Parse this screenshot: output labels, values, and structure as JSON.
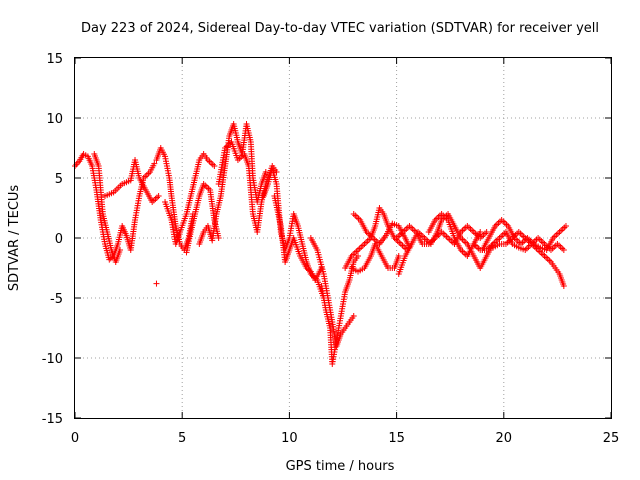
{
  "chart_data": {
    "type": "scatter",
    "title": "Day 223 of 2024, Sidereal Day-to-day VTEC variation (SDTVAR) for receiver yell",
    "xlabel": "GPS time / hours",
    "ylabel": "SDTVAR / TECUs",
    "xlim": [
      0,
      25
    ],
    "ylim": [
      -15,
      15
    ],
    "xticks": [
      "0",
      "5",
      "10",
      "15",
      "20",
      "25"
    ],
    "yticks": [
      "-15",
      "-10",
      "-5",
      "0",
      "5",
      "10",
      "15"
    ],
    "grid": true,
    "marker": "+",
    "series_color": "#ff0000",
    "series": [
      {
        "name": "SDTVAR",
        "segments": [
          [
            [
              0.0,
              6.0
            ],
            [
              0.2,
              6.4
            ],
            [
              0.4,
              7.0
            ],
            [
              0.6,
              6.8
            ],
            [
              0.8,
              6.0
            ],
            [
              1.0,
              4.0
            ],
            [
              1.2,
              1.5
            ],
            [
              1.4,
              -0.5
            ],
            [
              1.6,
              -1.8
            ],
            [
              1.8,
              -1.5
            ],
            [
              2.0,
              -0.5
            ],
            [
              2.2,
              1.0
            ],
            [
              2.4,
              0.2
            ],
            [
              2.6,
              -1.0
            ],
            [
              2.8,
              1.5
            ],
            [
              3.0,
              3.5
            ],
            [
              3.2,
              5.0
            ],
            [
              3.5,
              5.5
            ],
            [
              3.7,
              6.2
            ]
          ],
          [
            [
              0.9,
              7.0
            ],
            [
              1.1,
              6.0
            ],
            [
              1.2,
              4.0
            ],
            [
              1.3,
              2.0
            ],
            [
              1.5,
              0.5
            ],
            [
              1.7,
              -1.0
            ],
            [
              1.9,
              -2.0
            ],
            [
              2.1,
              -1.0
            ]
          ],
          [
            [
              1.4,
              3.5
            ],
            [
              1.8,
              3.8
            ],
            [
              2.2,
              4.5
            ],
            [
              2.6,
              4.8
            ],
            [
              2.8,
              6.5
            ],
            [
              3.0,
              5.0
            ],
            [
              3.3,
              4.0
            ],
            [
              3.6,
              3.0
            ],
            [
              3.9,
              3.5
            ]
          ],
          [
            [
              3.8,
              -3.8
            ]
          ],
          [
            [
              3.8,
              6.5
            ],
            [
              4.0,
              7.5
            ],
            [
              4.2,
              6.8
            ],
            [
              4.4,
              5.0
            ],
            [
              4.5,
              3.5
            ],
            [
              4.7,
              1.0
            ],
            [
              4.9,
              -0.5
            ],
            [
              5.1,
              -1.0
            ],
            [
              5.3,
              0.0
            ],
            [
              5.5,
              2.0
            ]
          ],
          [
            [
              4.2,
              3.0
            ],
            [
              4.5,
              1.5
            ],
            [
              4.7,
              -0.5
            ],
            [
              4.9,
              0.5
            ],
            [
              5.2,
              2.0
            ],
            [
              5.4,
              3.5
            ],
            [
              5.6,
              5.0
            ],
            [
              5.8,
              6.5
            ],
            [
              6.0,
              7.0
            ],
            [
              6.2,
              6.5
            ],
            [
              6.5,
              6.0
            ]
          ],
          [
            [
              5.2,
              -1.2
            ],
            [
              5.4,
              0.5
            ],
            [
              5.6,
              2.0
            ],
            [
              5.8,
              3.5
            ],
            [
              6.0,
              4.5
            ],
            [
              6.3,
              4.0
            ],
            [
              6.5,
              1.5
            ],
            [
              6.7,
              0.0
            ]
          ],
          [
            [
              5.8,
              -0.5
            ],
            [
              6.0,
              0.5
            ],
            [
              6.2,
              1.0
            ],
            [
              6.4,
              -0.2
            ],
            [
              6.6,
              2.0
            ],
            [
              6.8,
              3.5
            ],
            [
              7.0,
              6.0
            ],
            [
              7.2,
              8.5
            ],
            [
              7.4,
              9.5
            ],
            [
              7.6,
              8.0
            ],
            [
              7.8,
              7.0
            ],
            [
              8.0,
              9.5
            ],
            [
              8.2,
              8.0
            ],
            [
              8.3,
              5.0
            ],
            [
              8.5,
              3.0
            ],
            [
              8.7,
              4.5
            ],
            [
              8.9,
              5.5
            ]
          ],
          [
            [
              6.7,
              4.5
            ],
            [
              7.0,
              7.5
            ],
            [
              7.3,
              8.0
            ],
            [
              7.6,
              6.5
            ],
            [
              7.9,
              7.0
            ],
            [
              8.1,
              6.0
            ],
            [
              8.3,
              2.0
            ],
            [
              8.5,
              0.5
            ],
            [
              8.7,
              3.0
            ],
            [
              8.9,
              4.5
            ],
            [
              9.2,
              6.0
            ],
            [
              9.4,
              5.5
            ]
          ],
          [
            [
              8.8,
              3.5
            ],
            [
              9.0,
              4.5
            ],
            [
              9.2,
              5.8
            ],
            [
              9.4,
              4.5
            ],
            [
              9.5,
              2.5
            ],
            [
              9.6,
              0.5
            ],
            [
              9.8,
              -1.0
            ],
            [
              10.0,
              0.0
            ],
            [
              10.2,
              2.0
            ],
            [
              10.4,
              1.0
            ],
            [
              10.6,
              -0.5
            ],
            [
              10.8,
              -2.0
            ],
            [
              11.0,
              -3.0
            ],
            [
              11.3,
              -3.5
            ],
            [
              11.6,
              -5.0
            ]
          ],
          [
            [
              9.3,
              3.5
            ],
            [
              9.6,
              1.0
            ],
            [
              9.8,
              -2.0
            ],
            [
              10.0,
              -1.0
            ],
            [
              10.2,
              0.0
            ],
            [
              10.5,
              -1.5
            ],
            [
              10.8,
              -2.5
            ],
            [
              11.0,
              -2.8
            ],
            [
              11.2,
              -3.5
            ],
            [
              11.5,
              -2.5
            ]
          ],
          [
            [
              11.0,
              0.0
            ],
            [
              11.3,
              -1.0
            ],
            [
              11.6,
              -3.0
            ],
            [
              11.8,
              -5.0
            ],
            [
              12.0,
              -7.0
            ],
            [
              12.1,
              -8.0
            ],
            [
              12.2,
              -9.0
            ],
            [
              12.4,
              -8.0
            ],
            [
              12.6,
              -7.5
            ],
            [
              12.8,
              -7.0
            ],
            [
              13.0,
              -6.5
            ]
          ],
          [
            [
              11.5,
              -4.0
            ],
            [
              11.7,
              -6.0
            ],
            [
              11.9,
              -7.5
            ],
            [
              12.0,
              -10.5
            ],
            [
              12.2,
              -8.5
            ],
            [
              12.4,
              -6.5
            ],
            [
              12.6,
              -4.5
            ],
            [
              12.8,
              -3.5
            ],
            [
              13.0,
              -2.0
            ],
            [
              13.2,
              -1.5
            ]
          ],
          [
            [
              12.6,
              -2.5
            ],
            [
              12.9,
              -1.5
            ],
            [
              13.2,
              -1.0
            ],
            [
              13.5,
              -0.5
            ],
            [
              13.8,
              0.0
            ],
            [
              14.0,
              1.0
            ],
            [
              14.2,
              2.5
            ],
            [
              14.4,
              2.0
            ],
            [
              14.6,
              1.0
            ],
            [
              14.9,
              0.0
            ],
            [
              15.2,
              -0.5
            ],
            [
              15.5,
              -1.0
            ],
            [
              15.7,
              -0.5
            ]
          ],
          [
            [
              12.9,
              -2.5
            ],
            [
              13.2,
              -2.8
            ],
            [
              13.5,
              -2.5
            ],
            [
              13.8,
              -1.5
            ],
            [
              14.0,
              -0.5
            ],
            [
              14.3,
              -1.5
            ],
            [
              14.6,
              -2.5
            ],
            [
              14.9,
              -2.5
            ],
            [
              15.1,
              -1.5
            ]
          ],
          [
            [
              13.0,
              2.0
            ],
            [
              13.3,
              1.5
            ],
            [
              13.6,
              0.5
            ],
            [
              13.9,
              0.0
            ],
            [
              14.2,
              -0.5
            ],
            [
              14.5,
              0.2
            ],
            [
              14.8,
              1.2
            ],
            [
              15.1,
              1.0
            ],
            [
              15.4,
              0.0
            ],
            [
              15.6,
              -0.8
            ]
          ],
          [
            [
              15.1,
              -3.0
            ],
            [
              15.4,
              -1.5
            ],
            [
              15.7,
              -0.5
            ],
            [
              16.0,
              0.5
            ],
            [
              16.3,
              0.0
            ],
            [
              16.6,
              -0.5
            ],
            [
              16.9,
              0.5
            ],
            [
              17.1,
              1.5
            ],
            [
              17.4,
              2.0
            ],
            [
              17.7,
              1.0
            ],
            [
              18.0,
              0.0
            ],
            [
              18.3,
              -0.5
            ],
            [
              18.6,
              -1.5
            ],
            [
              18.9,
              -2.5
            ],
            [
              19.2,
              -1.5
            ],
            [
              19.5,
              -0.5
            ]
          ],
          [
            [
              15.0,
              0.0
            ],
            [
              15.3,
              0.5
            ],
            [
              15.6,
              1.0
            ],
            [
              15.9,
              0.5
            ],
            [
              16.2,
              -0.5
            ],
            [
              16.5,
              -0.5
            ],
            [
              16.8,
              0.0
            ],
            [
              17.1,
              0.5
            ],
            [
              17.4,
              0.0
            ],
            [
              17.7,
              -0.5
            ],
            [
              18.0,
              0.5
            ],
            [
              18.3,
              1.0
            ],
            [
              18.6,
              0.5
            ],
            [
              18.9,
              0.0
            ],
            [
              19.2,
              0.5
            ]
          ],
          [
            [
              16.5,
              0.5
            ],
            [
              16.8,
              1.5
            ],
            [
              17.1,
              2.0
            ],
            [
              17.4,
              1.5
            ],
            [
              17.7,
              0.0
            ],
            [
              18.0,
              -1.0
            ],
            [
              18.3,
              -1.5
            ],
            [
              18.6,
              -0.5
            ],
            [
              18.9,
              0.5
            ]
          ],
          [
            [
              18.6,
              -0.5
            ],
            [
              18.9,
              -1.0
            ],
            [
              19.2,
              -1.0
            ],
            [
              19.5,
              -0.5
            ],
            [
              19.8,
              0.0
            ],
            [
              20.1,
              0.5
            ],
            [
              20.4,
              -0.5
            ],
            [
              20.7,
              -0.8
            ],
            [
              21.0,
              -1.0
            ],
            [
              21.3,
              -0.5
            ],
            [
              21.6,
              -1.0
            ],
            [
              21.9,
              -1.5
            ],
            [
              22.2,
              -2.0
            ],
            [
              22.4,
              -2.5
            ],
            [
              22.6,
              -3.0
            ],
            [
              22.8,
              -4.0
            ]
          ],
          [
            [
              19.0,
              -1.0
            ],
            [
              19.3,
              0.0
            ],
            [
              19.6,
              1.0
            ],
            [
              19.9,
              1.5
            ],
            [
              20.2,
              1.0
            ],
            [
              20.5,
              0.0
            ],
            [
              20.8,
              -0.5
            ],
            [
              21.1,
              0.0
            ],
            [
              21.4,
              -0.5
            ],
            [
              21.7,
              -0.8
            ],
            [
              22.0,
              -1.0
            ],
            [
              22.3,
              0.0
            ],
            [
              22.6,
              0.5
            ],
            [
              22.9,
              1.0
            ]
          ],
          [
            [
              19.5,
              -0.8
            ],
            [
              19.8,
              -0.5
            ],
            [
              20.1,
              -0.5
            ],
            [
              20.4,
              0.0
            ],
            [
              20.7,
              0.5
            ],
            [
              21.0,
              0.0
            ],
            [
              21.3,
              -0.5
            ],
            [
              21.6,
              0.0
            ],
            [
              21.9,
              -0.5
            ],
            [
              22.2,
              -1.0
            ],
            [
              22.5,
              -0.5
            ],
            [
              22.8,
              -1.0
            ]
          ]
        ]
      }
    ]
  }
}
